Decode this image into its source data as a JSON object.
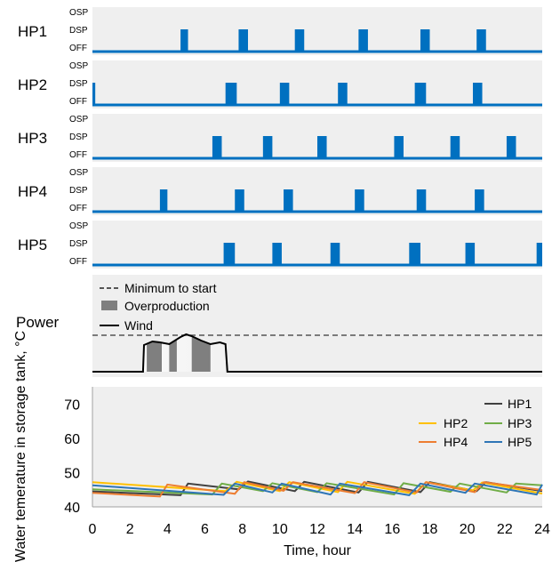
{
  "chart_data": {
    "type": "composite",
    "xlabel": "Time, hour",
    "xlim": [
      0,
      24
    ],
    "x_ticks": [
      0,
      2,
      4,
      6,
      8,
      10,
      12,
      14,
      16,
      18,
      20,
      22,
      24
    ],
    "state_labels": [
      "OSP",
      "DSP",
      "OFF"
    ],
    "hp_panels": [
      {
        "name": "HP1",
        "pulses": [
          [
            4.7,
            5.1
          ],
          [
            7.8,
            8.3
          ],
          [
            10.8,
            11.3
          ],
          [
            14.2,
            14.7
          ],
          [
            17.5,
            18.0
          ],
          [
            20.5,
            21.0
          ]
        ]
      },
      {
        "name": "HP2",
        "pulses": [
          [
            0.0,
            0.15
          ],
          [
            7.1,
            7.7
          ],
          [
            10.0,
            10.5
          ],
          [
            13.1,
            13.6
          ],
          [
            17.2,
            17.8
          ],
          [
            20.3,
            20.8
          ]
        ]
      },
      {
        "name": "HP3",
        "pulses": [
          [
            6.4,
            6.9
          ],
          [
            9.1,
            9.6
          ],
          [
            12.0,
            12.5
          ],
          [
            16.1,
            16.6
          ],
          [
            19.1,
            19.6
          ],
          [
            22.1,
            22.6
          ]
        ]
      },
      {
        "name": "HP4",
        "pulses": [
          [
            3.6,
            4.0
          ],
          [
            7.6,
            8.1
          ],
          [
            10.2,
            10.7
          ],
          [
            14.0,
            14.5
          ],
          [
            17.3,
            17.8
          ],
          [
            20.4,
            20.9
          ]
        ]
      },
      {
        "name": "HP5",
        "pulses": [
          [
            7.0,
            7.6
          ],
          [
            9.6,
            10.1
          ],
          [
            12.7,
            13.2
          ],
          [
            16.9,
            17.5
          ],
          [
            19.9,
            20.4
          ],
          [
            23.7,
            24.0
          ]
        ]
      }
    ],
    "power": {
      "title": "Power",
      "legend": [
        "Minimum to start",
        "Overproduction",
        "Wind"
      ],
      "minimum_to_start": 0.82,
      "wind": {
        "x": [
          0,
          2.7,
          2.75,
          3.2,
          3.6,
          4.1,
          4.7,
          5.0,
          5.3,
          5.8,
          6.3,
          6.8,
          7.1,
          7.2,
          24
        ],
        "y": [
          0.0,
          0.0,
          0.6,
          0.68,
          0.66,
          0.62,
          0.78,
          0.84,
          0.8,
          0.7,
          0.62,
          0.66,
          0.62,
          0.0,
          0.0
        ]
      },
      "overproduction": [
        [
          2.9,
          3.7
        ],
        [
          4.1,
          4.5
        ],
        [
          5.3,
          6.3
        ]
      ]
    },
    "temperature": {
      "ylabel": "Water temerature in storage tank, °C",
      "ylim": [
        40,
        75
      ],
      "y_ticks": [
        40,
        50,
        60,
        70
      ],
      "series": [
        {
          "name": "HP1",
          "color": "#404040",
          "x": [
            0,
            4.7,
            5.1,
            7.8,
            8.3,
            10.8,
            11.3,
            14.2,
            14.7,
            17.5,
            18.0,
            20.5,
            21.0,
            24
          ],
          "y": [
            44.5,
            43.4,
            46.8,
            45.1,
            47.4,
            44.6,
            47.3,
            44.2,
            47.3,
            44.3,
            47.2,
            44.6,
            47.2,
            44.6
          ]
        },
        {
          "name": "HP2",
          "color": "#ffc000",
          "x": [
            0,
            7.1,
            7.7,
            10.0,
            10.5,
            13.1,
            13.6,
            17.2,
            17.8,
            20.3,
            20.8,
            24
          ],
          "y": [
            47.2,
            44.6,
            47.3,
            44.6,
            47.2,
            44.3,
            47.3,
            43.8,
            47.2,
            44.8,
            47.1,
            43.9
          ]
        },
        {
          "name": "HP3",
          "color": "#70ad47",
          "x": [
            0,
            6.4,
            6.9,
            9.1,
            9.6,
            12.0,
            12.5,
            16.1,
            16.6,
            19.1,
            19.6,
            22.1,
            22.6,
            24
          ],
          "y": [
            45.1,
            43.6,
            46.8,
            44.6,
            46.9,
            44.3,
            46.9,
            43.6,
            46.9,
            44.4,
            46.8,
            44.2,
            46.8,
            46.3
          ]
        },
        {
          "name": "HP4",
          "color": "#ed7d31",
          "x": [
            0,
            3.6,
            4.0,
            7.6,
            8.1,
            10.2,
            10.7,
            14.0,
            14.5,
            17.3,
            17.8,
            20.4,
            20.9,
            24
          ],
          "y": [
            44.1,
            43.0,
            46.5,
            43.8,
            47.2,
            44.7,
            47.2,
            44.0,
            47.2,
            44.2,
            47.2,
            44.3,
            47.2,
            44.9
          ]
        },
        {
          "name": "HP5",
          "color": "#2e75b6",
          "x": [
            0,
            7.0,
            7.6,
            9.6,
            10.1,
            12.7,
            13.2,
            16.9,
            17.5,
            19.9,
            20.4,
            23.7,
            24.0
          ],
          "y": [
            46.3,
            43.5,
            46.8,
            44.2,
            46.8,
            43.6,
            46.8,
            43.4,
            46.8,
            44.1,
            46.8,
            43.6,
            46.5
          ]
        }
      ]
    }
  }
}
